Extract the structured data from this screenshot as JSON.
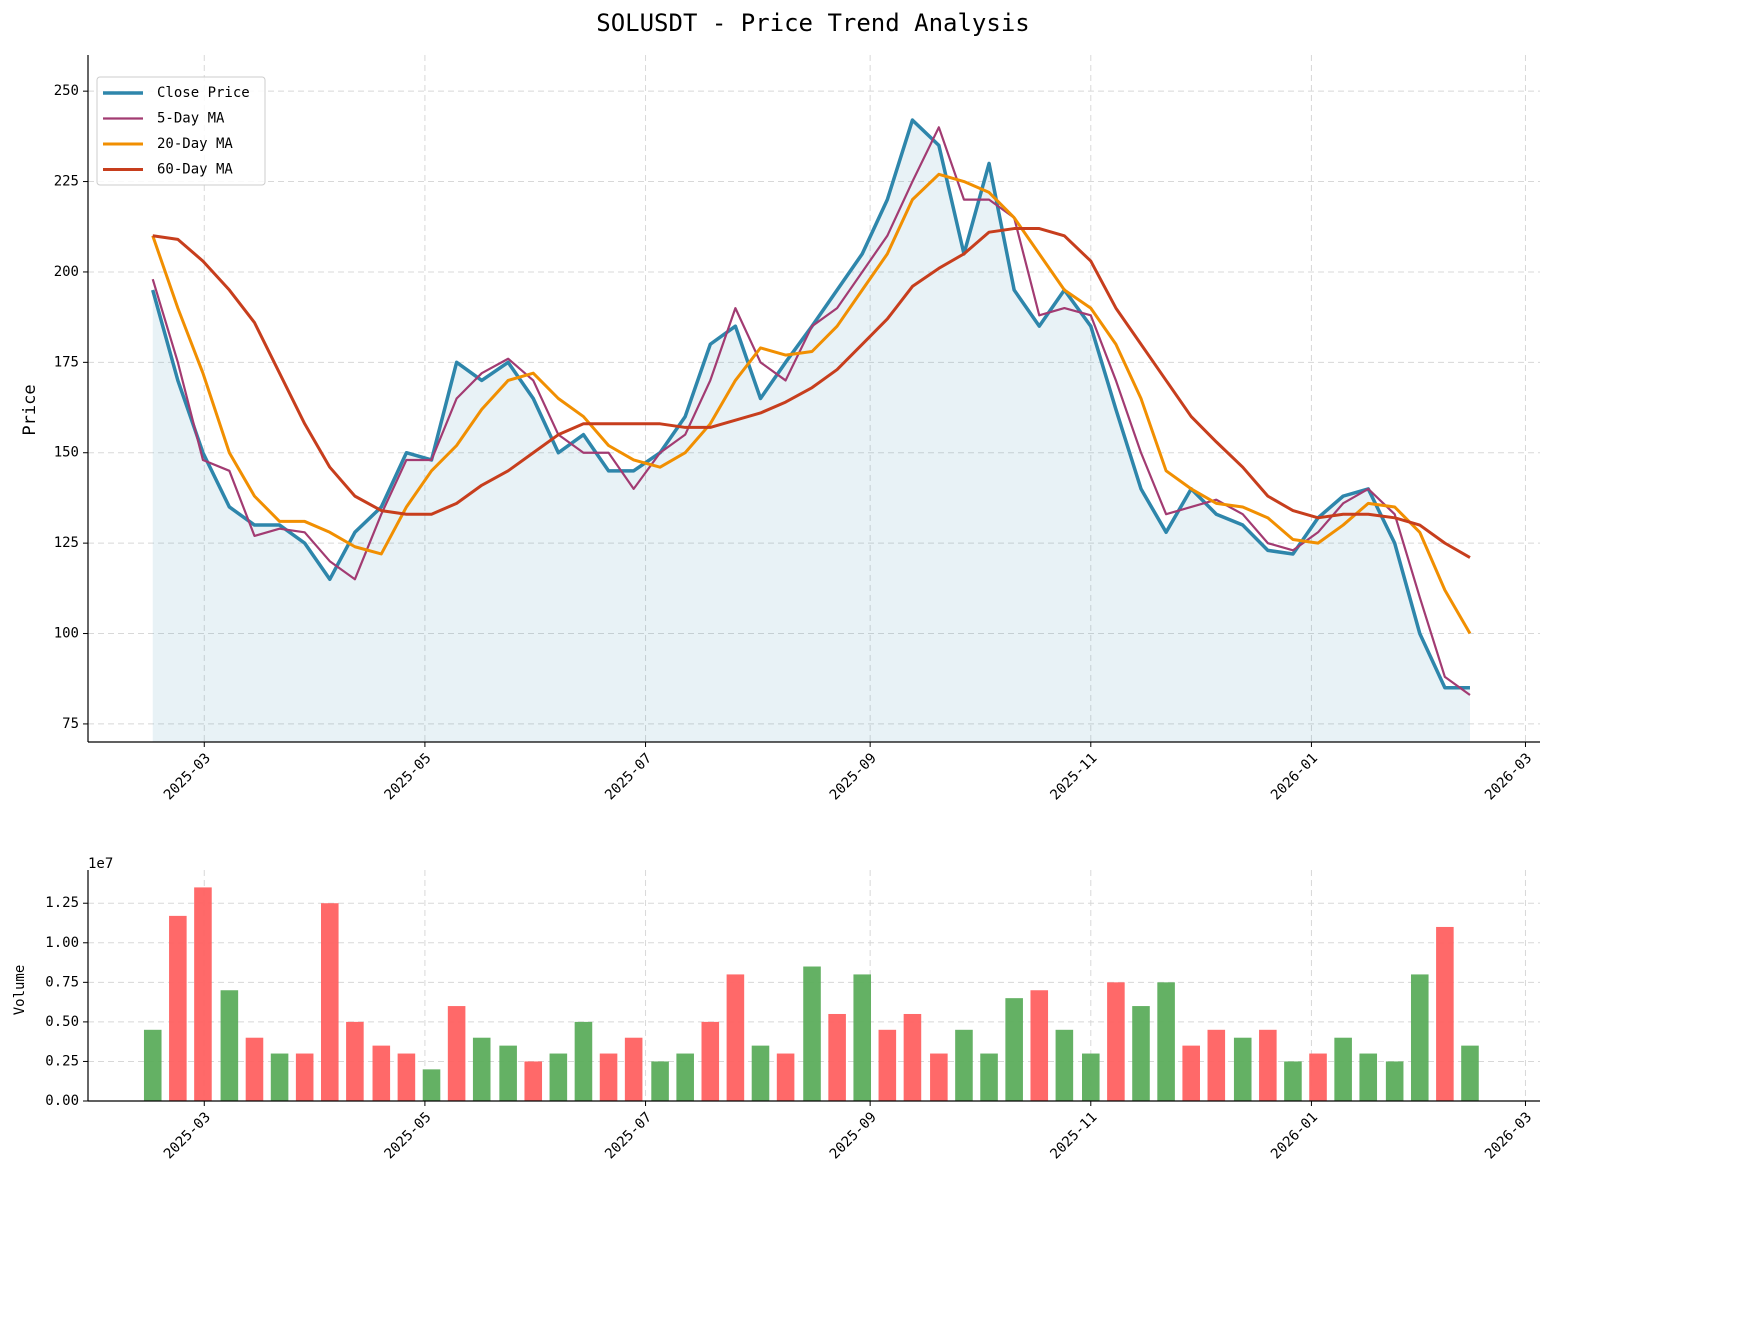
{
  "chart_data": [
    {
      "type": "line",
      "title": "SOLUSDT - Price Trend Analysis",
      "y_label": "Price",
      "x": [
        2025.123,
        2025.142,
        2025.161,
        2025.181,
        2025.2,
        2025.219,
        2025.238,
        2025.257,
        2025.276,
        2025.296,
        2025.315,
        2025.334,
        2025.353,
        2025.372,
        2025.392,
        2025.411,
        2025.43,
        2025.449,
        2025.468,
        2025.487,
        2025.507,
        2025.526,
        2025.545,
        2025.564,
        2025.583,
        2025.602,
        2025.622,
        2025.641,
        2025.66,
        2025.679,
        2025.698,
        2025.718,
        2025.737,
        2025.756,
        2025.775,
        2025.794,
        2025.813,
        2025.833,
        2025.852,
        2025.871,
        2025.89,
        2025.909,
        2025.928,
        2025.948,
        2025.967,
        2025.986,
        2026.005,
        2026.024,
        2026.043,
        2026.063,
        2026.082,
        2026.101,
        2026.12
      ],
      "series": [
        {
          "name": "Close Price",
          "color": "#2e86ab",
          "width": 3.5,
          "fill": true,
          "values": [
            195,
            170,
            150,
            135,
            130,
            130,
            125,
            115,
            128,
            135,
            150,
            148,
            175,
            170,
            175,
            165,
            150,
            155,
            145,
            145,
            150,
            160,
            180,
            185,
            165,
            175,
            185,
            195,
            205,
            220,
            242,
            235,
            205,
            230,
            195,
            185,
            195,
            185,
            162,
            140,
            128,
            140,
            133,
            130,
            123,
            122,
            132,
            138,
            140,
            125,
            100,
            85,
            85
          ]
        },
        {
          "name": "5-Day MA",
          "color": "#a23b72",
          "width": 2.2,
          "values": [
            198,
            175,
            148,
            145,
            127,
            129,
            128,
            120,
            115,
            133,
            148,
            148,
            165,
            172,
            176,
            170,
            155,
            150,
            150,
            140,
            150,
            155,
            170,
            190,
            175,
            170,
            185,
            190,
            200,
            210,
            225,
            240,
            220,
            220,
            215,
            188,
            190,
            188,
            170,
            150,
            133,
            135,
            137,
            133,
            125,
            123,
            128,
            136,
            140,
            133,
            110,
            88,
            83
          ]
        },
        {
          "name": "20-Day MA",
          "color": "#f18f01",
          "width": 3,
          "values": [
            210,
            190,
            172,
            150,
            138,
            131,
            131,
            128,
            124,
            122,
            135,
            145,
            152,
            162,
            170,
            172,
            165,
            160,
            152,
            148,
            146,
            150,
            158,
            170,
            179,
            177,
            178,
            185,
            195,
            205,
            220,
            227,
            225,
            222,
            215,
            205,
            195,
            190,
            180,
            165,
            145,
            140,
            136,
            135,
            132,
            126,
            125,
            130,
            136,
            135,
            128,
            112,
            100
          ]
        },
        {
          "name": "60-Day MA",
          "color": "#c73e1d",
          "width": 3,
          "values": [
            210,
            209,
            203,
            195,
            186,
            172,
            158,
            146,
            138,
            134,
            133,
            133,
            136,
            141,
            145,
            150,
            155,
            158,
            158,
            158,
            158,
            157,
            157,
            159,
            161,
            164,
            168,
            173,
            180,
            187,
            196,
            201,
            205,
            211,
            212,
            212,
            210,
            203,
            190,
            180,
            170,
            160,
            153,
            146,
            138,
            134,
            132,
            133,
            133,
            132,
            130,
            125,
            121
          ]
        }
      ],
      "xlim": [
        2025.074,
        2026.173
      ],
      "xticks": [
        {
          "value": 2025.162,
          "label": "2025-03"
        },
        {
          "value": 2025.329,
          "label": "2025-05"
        },
        {
          "value": 2025.496,
          "label": "2025-07"
        },
        {
          "value": 2025.666,
          "label": "2025-09"
        },
        {
          "value": 2025.833,
          "label": "2025-11"
        },
        {
          "value": 2026.0,
          "label": "2026-01"
        },
        {
          "value": 2026.162,
          "label": "2026-03"
        }
      ],
      "ylim": [
        70,
        260
      ],
      "yticks": [
        75,
        100,
        125,
        150,
        175,
        200,
        225,
        250
      ],
      "grid": true,
      "legend": "upper-left"
    },
    {
      "type": "bar",
      "y_label": "Volume",
      "y_multiplier": "1e7",
      "x": [
        2025.123,
        2025.142,
        2025.161,
        2025.181,
        2025.2,
        2025.219,
        2025.238,
        2025.257,
        2025.276,
        2025.296,
        2025.315,
        2025.334,
        2025.353,
        2025.372,
        2025.392,
        2025.411,
        2025.43,
        2025.449,
        2025.468,
        2025.487,
        2025.507,
        2025.526,
        2025.545,
        2025.564,
        2025.583,
        2025.602,
        2025.622,
        2025.641,
        2025.66,
        2025.679,
        2025.698,
        2025.718,
        2025.737,
        2025.756,
        2025.775,
        2025.794,
        2025.813,
        2025.833,
        2025.852,
        2025.871,
        2025.89,
        2025.909,
        2025.928,
        2025.948,
        2025.967,
        2025.986,
        2026.005,
        2026.024,
        2026.043,
        2026.063,
        2026.082,
        2026.101,
        2026.12
      ],
      "values": [
        0.45,
        1.17,
        1.35,
        0.7,
        0.4,
        0.3,
        0.3,
        1.25,
        0.5,
        0.35,
        0.3,
        0.2,
        0.6,
        0.4,
        0.35,
        0.25,
        0.3,
        0.5,
        0.3,
        0.4,
        0.25,
        0.3,
        0.5,
        0.8,
        0.35,
        0.3,
        0.85,
        0.55,
        0.8,
        0.45,
        0.55,
        0.3,
        0.45,
        0.3,
        0.65,
        0.7,
        0.45,
        0.3,
        0.75,
        0.6,
        0.75,
        0.35,
        0.45,
        0.4,
        0.45,
        0.25,
        0.3,
        0.4,
        0.3,
        0.25,
        0.8,
        1.1,
        0.35
      ],
      "colors": [
        "#5cad5c",
        "#ff6161",
        "#ff6161",
        "#5cad5c",
        "#ff6161",
        "#5cad5c",
        "#ff6161",
        "#ff6161",
        "#ff6161",
        "#ff6161",
        "#ff6161",
        "#5cad5c",
        "#ff6161",
        "#5cad5c",
        "#5cad5c",
        "#ff6161",
        "#5cad5c",
        "#5cad5c",
        "#ff6161",
        "#ff6161",
        "#5cad5c",
        "#5cad5c",
        "#ff6161",
        "#ff6161",
        "#5cad5c",
        "#ff6161",
        "#5cad5c",
        "#ff6161",
        "#5cad5c",
        "#ff6161",
        "#ff6161",
        "#ff6161",
        "#5cad5c",
        "#5cad5c",
        "#5cad5c",
        "#ff6161",
        "#5cad5c",
        "#5cad5c",
        "#ff6161",
        "#5cad5c",
        "#5cad5c",
        "#ff6161",
        "#ff6161",
        "#5cad5c",
        "#ff6161",
        "#5cad5c",
        "#ff6161",
        "#5cad5c",
        "#5cad5c",
        "#5cad5c",
        "#5cad5c",
        "#ff6161",
        "#5cad5c"
      ],
      "xlim": [
        2025.074,
        2026.173
      ],
      "xticks": [
        {
          "value": 2025.162,
          "label": "2025-03"
        },
        {
          "value": 2025.329,
          "label": "2025-05"
        },
        {
          "value": 2025.496,
          "label": "2025-07"
        },
        {
          "value": 2025.666,
          "label": "2025-09"
        },
        {
          "value": 2025.833,
          "label": "2025-11"
        },
        {
          "value": 2026.0,
          "label": "2026-01"
        },
        {
          "value": 2026.162,
          "label": "2026-03"
        }
      ],
      "ylim": [
        0,
        1.46
      ],
      "yticks": [
        {
          "value": 0,
          "label": "0.00"
        },
        {
          "value": 0.25,
          "label": "0.25"
        },
        {
          "value": 0.5,
          "label": "0.50"
        },
        {
          "value": 0.75,
          "label": "0.75"
        },
        {
          "value": 1.0,
          "label": "1.00"
        },
        {
          "value": 1.25,
          "label": "1.25"
        }
      ],
      "grid": true
    }
  ]
}
